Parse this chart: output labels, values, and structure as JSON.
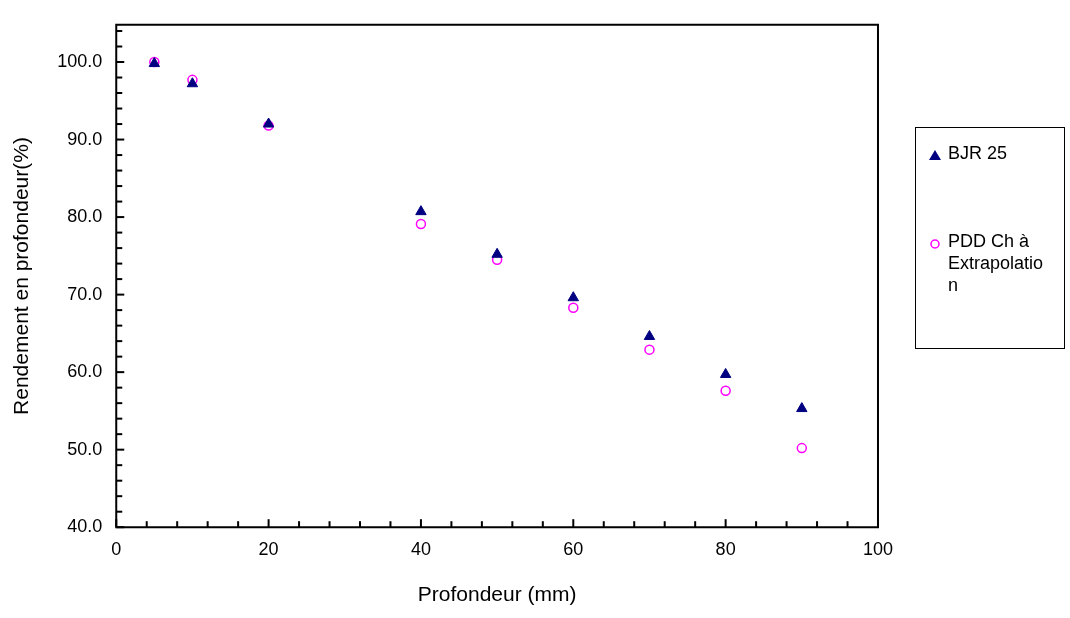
{
  "chart_data": {
    "type": "scatter",
    "xlabel": "Profondeur (mm)",
    "ylabel": "Rendement en profondeur(%)",
    "x": [
      5,
      10,
      20,
      40,
      50,
      60,
      70,
      80,
      90
    ],
    "series": [
      {
        "name": "BJR 25",
        "color": "#000080",
        "marker": "triangle",
        "values": [
          99.8,
          97.2,
          92.0,
          80.7,
          75.2,
          69.6,
          64.6,
          59.7,
          55.3
        ]
      },
      {
        "name": "PDD Ch à Extrapolation",
        "color": "#ff00ff",
        "marker": "circle",
        "values": [
          100.0,
          97.7,
          91.8,
          79.1,
          74.5,
          68.3,
          62.9,
          57.6,
          50.2
        ]
      }
    ],
    "xlim": [
      0,
      100
    ],
    "xticks": [
      0,
      {
        "value": 4,
        "label": null
      },
      {
        "value": 8,
        "label": null
      },
      {
        "value": 12,
        "label": null
      },
      {
        "value": 16,
        "label": null
      },
      20,
      {
        "value": 24,
        "label": null
      },
      {
        "value": 28,
        "label": null
      },
      {
        "value": 32,
        "label": null
      },
      {
        "value": 36,
        "label": null
      },
      40,
      {
        "value": 44,
        "label": null
      },
      {
        "value": 48,
        "label": null
      },
      {
        "value": 52,
        "label": null
      },
      {
        "value": 56,
        "label": null
      },
      60,
      {
        "value": 64,
        "label": null
      },
      {
        "value": 68,
        "label": null
      },
      {
        "value": 72,
        "label": null
      },
      {
        "value": 76,
        "label": null
      },
      80,
      {
        "value": 84,
        "label": null
      },
      {
        "value": 88,
        "label": null
      },
      {
        "value": 92,
        "label": null
      },
      {
        "value": 96,
        "label": null
      },
      100
    ],
    "ylim": [
      40,
      104.8
    ],
    "yticks": [
      {
        "value": 40,
        "label": "40.0"
      },
      {
        "value": 42,
        "label": null
      },
      {
        "value": 44,
        "label": null
      },
      {
        "value": 46,
        "label": null
      },
      {
        "value": 48,
        "label": null
      },
      {
        "value": 50,
        "label": "50.0"
      },
      {
        "value": 52,
        "label": null
      },
      {
        "value": 54,
        "label": null
      },
      {
        "value": 56,
        "label": null
      },
      {
        "value": 58,
        "label": null
      },
      {
        "value": 60,
        "label": "60.0"
      },
      {
        "value": 62,
        "label": null
      },
      {
        "value": 64,
        "label": null
      },
      {
        "value": 66,
        "label": null
      },
      {
        "value": 68,
        "label": null
      },
      {
        "value": 70,
        "label": "70.0"
      },
      {
        "value": 72,
        "label": null
      },
      {
        "value": 74,
        "label": null
      },
      {
        "value": 76,
        "label": null
      },
      {
        "value": 78,
        "label": null
      },
      {
        "value": 80,
        "label": "80.0"
      },
      {
        "value": 82,
        "label": null
      },
      {
        "value": 84,
        "label": null
      },
      {
        "value": 86,
        "label": null
      },
      {
        "value": 88,
        "label": null
      },
      {
        "value": 90,
        "label": "90.0"
      },
      {
        "value": 92,
        "label": null
      },
      {
        "value": 94,
        "label": null
      },
      {
        "value": 96,
        "label": null
      },
      {
        "value": 98,
        "label": null
      },
      {
        "value": 100,
        "label": "100.0"
      },
      {
        "value": 102,
        "label": null
      },
      {
        "value": 104,
        "label": null
      }
    ],
    "grid": false,
    "legend": "right"
  }
}
